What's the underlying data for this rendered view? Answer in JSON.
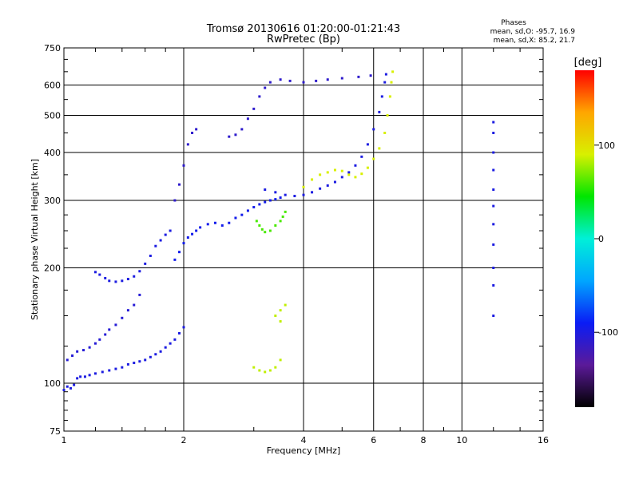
{
  "chart_data": {
    "type": "scatter",
    "title": "Tromsø 20130616 01:20:00-01:21:43",
    "subtitle": "RwPretec (Bp)",
    "xlabel": "Frequency [MHz]",
    "ylabel": "Stationary phase Virtual Height [km]",
    "x_scale": "log",
    "y_scale": "log",
    "xlim": [
      1,
      16
    ],
    "ylim": [
      75,
      750
    ],
    "x_ticks": [
      1,
      2,
      4,
      6,
      8,
      10,
      16
    ],
    "y_ticks": [
      75,
      100,
      200,
      300,
      400,
      500,
      600,
      750
    ],
    "grid": true,
    "legend": {
      "header": "Phases",
      "lines": [
        "mean, sd,O: -95.7, 16.9",
        "mean, sd,X:  85.2, 21.7"
      ],
      "placement": "top-right"
    },
    "colorbar": {
      "label": "[deg]",
      "min": -180,
      "max": 180,
      "ticks": [
        100,
        0,
        -100
      ],
      "colors": [
        "#000000",
        "#5b1a99",
        "#0a1cf5",
        "#00a6ff",
        "#00f0d8",
        "#00e600",
        "#d8f000",
        "#ffa600",
        "#ff0000"
      ]
    },
    "series": [
      {
        "trace": "o-mode-E-region",
        "phase_deg": -100,
        "points": [
          [
            1.0,
            96
          ],
          [
            1.02,
            98
          ],
          [
            1.04,
            97
          ],
          [
            1.06,
            99
          ],
          [
            1.08,
            103
          ],
          [
            1.1,
            104
          ],
          [
            1.13,
            104
          ],
          [
            1.16,
            105
          ],
          [
            1.2,
            106
          ],
          [
            1.25,
            107
          ],
          [
            1.3,
            108
          ],
          [
            1.35,
            109
          ],
          [
            1.4,
            110
          ],
          [
            1.45,
            112
          ],
          [
            1.5,
            113
          ],
          [
            1.55,
            114
          ],
          [
            1.6,
            115
          ],
          [
            1.65,
            117
          ],
          [
            1.7,
            119
          ],
          [
            1.75,
            121
          ],
          [
            1.8,
            124
          ],
          [
            1.85,
            127
          ],
          [
            1.9,
            130
          ],
          [
            1.95,
            135
          ],
          [
            2.0,
            140
          ]
        ]
      },
      {
        "trace": "o-mode-E-upper",
        "phase_deg": -105,
        "points": [
          [
            1.02,
            115
          ],
          [
            1.05,
            118
          ],
          [
            1.08,
            121
          ],
          [
            1.12,
            122
          ],
          [
            1.16,
            124
          ],
          [
            1.2,
            127
          ],
          [
            1.23,
            130
          ],
          [
            1.27,
            134
          ],
          [
            1.3,
            138
          ],
          [
            1.35,
            142
          ],
          [
            1.4,
            148
          ],
          [
            1.45,
            155
          ],
          [
            1.5,
            160
          ],
          [
            1.55,
            170
          ]
        ]
      },
      {
        "trace": "o-mode-F1-lower",
        "phase_deg": -100,
        "points": [
          [
            1.2,
            195
          ],
          [
            1.23,
            192
          ],
          [
            1.27,
            188
          ],
          [
            1.3,
            185
          ],
          [
            1.35,
            184
          ],
          [
            1.4,
            185
          ],
          [
            1.45,
            187
          ],
          [
            1.5,
            190
          ],
          [
            1.55,
            196
          ],
          [
            1.6,
            205
          ],
          [
            1.65,
            215
          ],
          [
            1.7,
            228
          ],
          [
            1.75,
            236
          ],
          [
            1.8,
            244
          ],
          [
            1.85,
            250
          ]
        ]
      },
      {
        "trace": "o-mode-F1-cloud",
        "phase_deg": -95,
        "points": [
          [
            1.9,
            210
          ],
          [
            1.95,
            220
          ],
          [
            2.0,
            232
          ],
          [
            2.05,
            240
          ],
          [
            2.1,
            245
          ],
          [
            2.15,
            250
          ],
          [
            2.2,
            255
          ],
          [
            2.3,
            260
          ],
          [
            2.4,
            262
          ],
          [
            2.5,
            258
          ],
          [
            2.6,
            262
          ],
          [
            2.7,
            270
          ],
          [
            2.8,
            275
          ],
          [
            2.9,
            282
          ],
          [
            3.0,
            288
          ],
          [
            3.1,
            293
          ],
          [
            3.2,
            297
          ],
          [
            3.3,
            300
          ],
          [
            3.4,
            302
          ],
          [
            3.5,
            305
          ]
        ]
      },
      {
        "trace": "o-mode-F2-high",
        "phase_deg": -110,
        "points": [
          [
            1.9,
            300
          ],
          [
            1.95,
            330
          ],
          [
            2.0,
            370
          ],
          [
            2.05,
            420
          ],
          [
            2.1,
            450
          ],
          [
            2.15,
            460
          ],
          [
            2.6,
            440
          ],
          [
            2.7,
            445
          ],
          [
            2.8,
            460
          ],
          [
            2.9,
            490
          ],
          [
            3.0,
            520
          ],
          [
            3.1,
            560
          ],
          [
            3.2,
            590
          ],
          [
            3.3,
            610
          ],
          [
            3.5,
            620
          ],
          [
            3.7,
            615
          ],
          [
            4.0,
            610
          ],
          [
            4.3,
            615
          ],
          [
            4.6,
            620
          ],
          [
            5.0,
            625
          ],
          [
            5.5,
            630
          ],
          [
            5.9,
            635
          ]
        ]
      },
      {
        "trace": "o-mode-F2-main",
        "phase_deg": -100,
        "points": [
          [
            3.2,
            320
          ],
          [
            3.4,
            315
          ],
          [
            3.6,
            310
          ],
          [
            3.8,
            308
          ],
          [
            4.0,
            310
          ],
          [
            4.2,
            315
          ],
          [
            4.4,
            322
          ],
          [
            4.6,
            328
          ],
          [
            4.8,
            335
          ],
          [
            5.0,
            345
          ],
          [
            5.2,
            355
          ],
          [
            5.4,
            370
          ],
          [
            5.6,
            390
          ],
          [
            5.8,
            420
          ],
          [
            6.0,
            460
          ],
          [
            6.2,
            510
          ],
          [
            6.3,
            560
          ],
          [
            6.4,
            610
          ],
          [
            6.45,
            640
          ]
        ]
      },
      {
        "trace": "x-mode-F2",
        "phase_deg": 90,
        "points": [
          [
            4.0,
            325
          ],
          [
            4.2,
            340
          ],
          [
            4.4,
            350
          ],
          [
            4.6,
            355
          ],
          [
            4.8,
            360
          ],
          [
            5.0,
            358
          ],
          [
            5.2,
            350
          ],
          [
            5.4,
            345
          ],
          [
            5.6,
            352
          ],
          [
            5.8,
            365
          ],
          [
            6.0,
            385
          ],
          [
            6.2,
            410
          ],
          [
            6.4,
            450
          ],
          [
            6.5,
            500
          ],
          [
            6.6,
            560
          ],
          [
            6.65,
            610
          ],
          [
            6.7,
            650
          ]
        ]
      },
      {
        "trace": "x-mode-F1-blob",
        "phase_deg": 60,
        "points": [
          [
            3.05,
            265
          ],
          [
            3.1,
            258
          ],
          [
            3.15,
            252
          ],
          [
            3.2,
            248
          ],
          [
            3.3,
            250
          ],
          [
            3.4,
            258
          ],
          [
            3.5,
            265
          ],
          [
            3.55,
            272
          ],
          [
            3.6,
            280
          ]
        ]
      },
      {
        "trace": "x-mode-E-blob",
        "phase_deg": 85,
        "points": [
          [
            3.0,
            110
          ],
          [
            3.1,
            108
          ],
          [
            3.2,
            107
          ],
          [
            3.3,
            108
          ],
          [
            3.4,
            110
          ],
          [
            3.5,
            115
          ],
          [
            3.4,
            150
          ],
          [
            3.5,
            155
          ],
          [
            3.6,
            160
          ],
          [
            3.5,
            145
          ]
        ]
      },
      {
        "trace": "vertical-streak-12MHz",
        "phase_deg": -100,
        "points": [
          [
            12.0,
            150
          ],
          [
            12.0,
            180
          ],
          [
            12.0,
            200
          ],
          [
            12.0,
            230
          ],
          [
            12.0,
            260
          ],
          [
            12.0,
            290
          ],
          [
            12.0,
            320
          ],
          [
            12.0,
            360
          ],
          [
            12.0,
            400
          ],
          [
            12.0,
            450
          ],
          [
            12.0,
            480
          ]
        ]
      }
    ]
  }
}
